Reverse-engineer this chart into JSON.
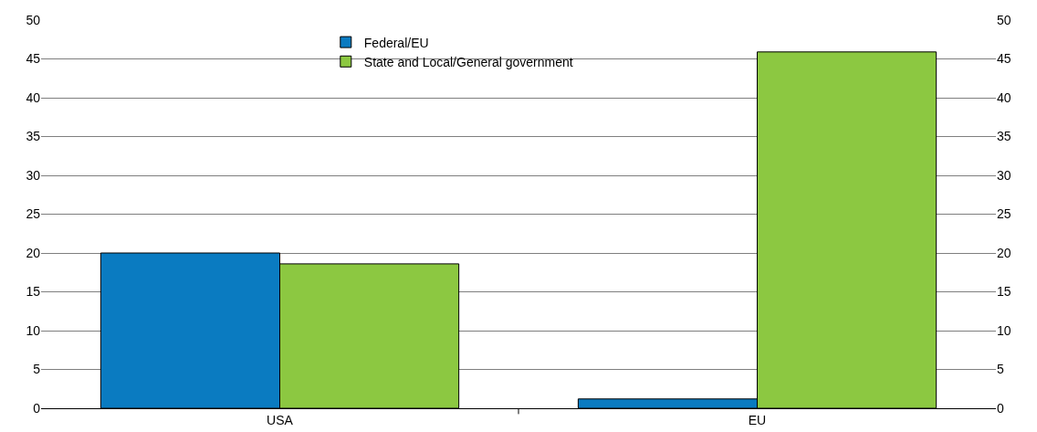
{
  "chart_data": {
    "type": "bar",
    "categories": [
      "USA",
      "EU"
    ],
    "series": [
      {
        "name": "Federal/EU",
        "color": "#0a7bc1",
        "values": [
          20,
          1.2
        ]
      },
      {
        "name": "State and Local/General government",
        "color": "#8cc841",
        "values": [
          18.6,
          45.9
        ]
      }
    ],
    "ylim": [
      0,
      50
    ],
    "yticks": [
      0,
      5,
      10,
      15,
      20,
      25,
      30,
      35,
      40,
      45,
      50
    ],
    "y2lim": [
      0,
      50
    ],
    "y2ticks": [
      0,
      5,
      10,
      15,
      20,
      25,
      30,
      35,
      40,
      45,
      50
    ],
    "grid": "y",
    "legend": "top"
  }
}
